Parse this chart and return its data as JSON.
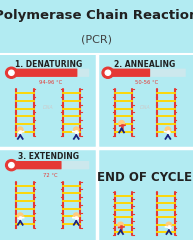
{
  "title": "Polymerase Chain Reaction",
  "subtitle": "(PCR)",
  "title_bg": "#b2ebf2",
  "cell_bg": "#00bcd4",
  "sections": [
    {
      "label": "1. DENATURING",
      "temp": "94-96 °C",
      "bar_color": "#e53935",
      "bar_fill": 0.85
    },
    {
      "label": "2. ANNEALING",
      "temp": "50-56 °C",
      "bar_color": "#e53935",
      "bar_fill": 0.55
    },
    {
      "label": "3. EXTENDING",
      "temp": "72 °C",
      "bar_color": "#e53935",
      "bar_fill": 0.65
    },
    {
      "label": "END OF CYCLE",
      "temp": "",
      "bar_color": "",
      "bar_fill": 0
    }
  ],
  "label_color": "#212121",
  "temp_color": "#e53935",
  "dna_color": "#e53935",
  "dna_rung_color": "#ffd600"
}
